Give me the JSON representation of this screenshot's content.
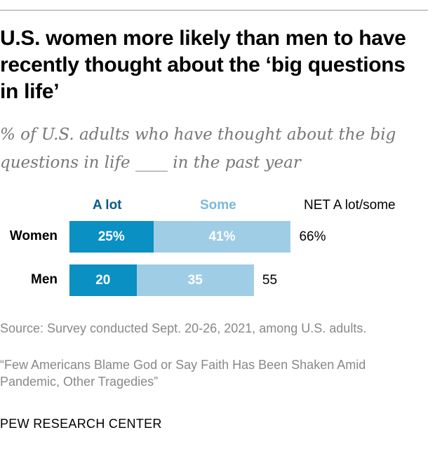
{
  "title": "U.S. women more likely than men to have recently thought about the ‘big questions in life’",
  "subtitle": "% of U.S. adults who have thought about the big questions in life ____ in the past year",
  "colors": {
    "a_lot": "#0a90c2",
    "some": "#a0cde6",
    "a_lot_header": "#0b5b86",
    "some_header": "#7ab8dc"
  },
  "chart_data": {
    "type": "bar",
    "orientation": "horizontal-stacked",
    "categories": [
      "Women",
      "Men"
    ],
    "series": [
      {
        "name": "A lot",
        "values": [
          25,
          20
        ],
        "labels": [
          "25%",
          "20"
        ]
      },
      {
        "name": "Some",
        "values": [
          41,
          35
        ],
        "labels": [
          "41%",
          "35"
        ]
      }
    ],
    "net": {
      "name": "NET A lot/some",
      "values": [
        66,
        55
      ],
      "labels": [
        "66%",
        "55"
      ]
    }
  },
  "source": "Source: Survey conducted Sept. 20-26, 2021, among U.S. adults.",
  "report": "“Few Americans Blame God or Say Faith Has Been Shaken Amid Pandemic, Other Tragedies”",
  "brand": "PEW RESEARCH CENTER"
}
